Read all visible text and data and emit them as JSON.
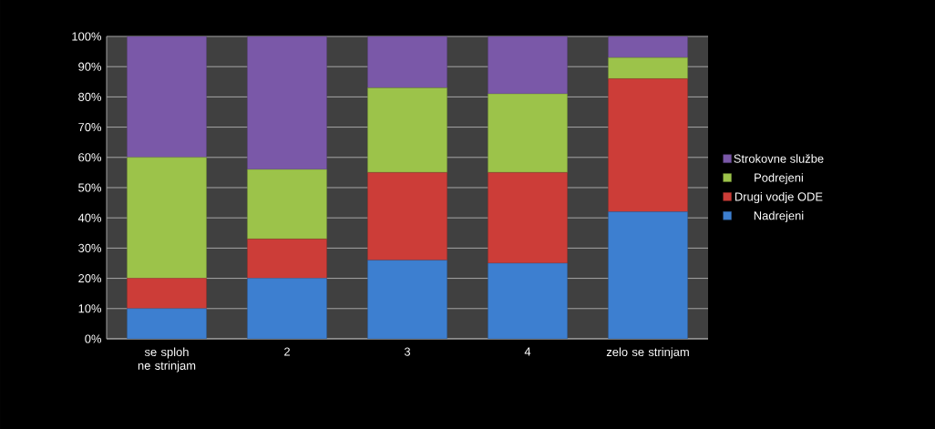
{
  "chart_data": {
    "type": "bar",
    "stacked": true,
    "categories": [
      "se sploh ne strinjam",
      "2",
      "3",
      "4",
      "zelo se strinjam"
    ],
    "series": [
      {
        "name": "Nadrejeni",
        "color": "#3d7fd0",
        "values": [
          10,
          20,
          26,
          25,
          42
        ]
      },
      {
        "name": "Drugi vodje ODE",
        "color": "#cc3d38",
        "values": [
          10,
          13,
          29,
          30,
          44
        ]
      },
      {
        "name": "Podrejeni",
        "color": "#9cc34a",
        "values": [
          40,
          23,
          28,
          26,
          7
        ]
      },
      {
        "name": "Strokovne službe",
        "color": "#7a58a8",
        "values": [
          40,
          44,
          17,
          19,
          7
        ]
      }
    ],
    "ylim": [
      0,
      100
    ],
    "yticks": [
      {
        "value": 0,
        "label": "0%"
      },
      {
        "value": 10,
        "label": "10%"
      },
      {
        "value": 20,
        "label": "20%"
      },
      {
        "value": 30,
        "label": "30%"
      },
      {
        "value": 40,
        "label": "40%"
      },
      {
        "value": 50,
        "label": "50%"
      },
      {
        "value": 60,
        "label": "60%"
      },
      {
        "value": 70,
        "label": "70%"
      },
      {
        "value": 80,
        "label": "80%"
      },
      {
        "value": 90,
        "label": "90%"
      },
      {
        "value": 100,
        "label": "100%"
      }
    ],
    "grid": "y",
    "legend": "right"
  }
}
